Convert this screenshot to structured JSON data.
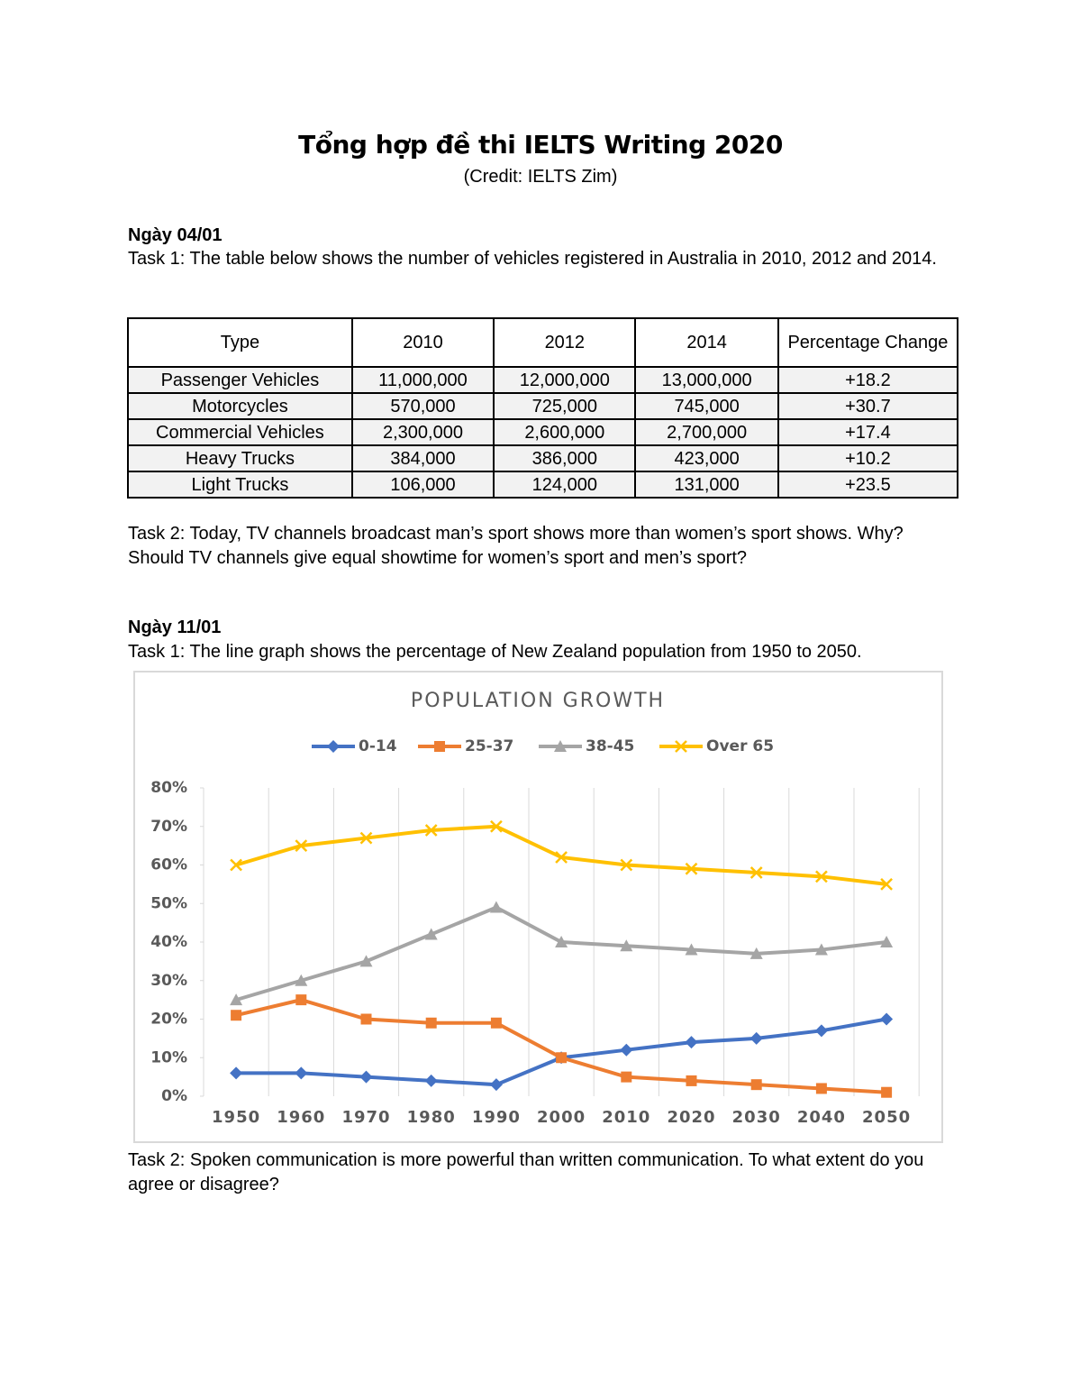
{
  "header": {
    "title": "Tổng hợp đề thi IELTS Writing 2020",
    "credit": "(Credit: IELTS Zim)"
  },
  "sections": [
    {
      "date": "Ngày 04/01",
      "task1": "Task 1: The table below shows the number of vehicles registered in Australia in 2010, 2012 and 2014.",
      "table": {
        "columns": [
          "Type",
          "2010",
          "2012",
          "2014",
          "Percentage Change"
        ],
        "rows": [
          [
            "Passenger Vehicles",
            "11,000,000",
            "12,000,000",
            "13,000,000",
            "+18.2"
          ],
          [
            "Motorcycles",
            "570,000",
            "725,000",
            "745,000",
            "+30.7"
          ],
          [
            "Commercial Vehicles",
            "2,300,000",
            "2,600,000",
            "2,700,000",
            "+17.4"
          ],
          [
            "Heavy Trucks",
            "384,000",
            "386,000",
            "423,000",
            "+10.2"
          ],
          [
            "Light Trucks",
            "106,000",
            "124,000",
            "131,000",
            "+23.5"
          ]
        ]
      },
      "task2": "Task 2: Today, TV channels broadcast man’s sport shows more than women’s sport shows. Why? Should TV channels give equal showtime for women’s sport and men’s sport?"
    },
    {
      "date": "Ngày 11/01",
      "task1": "Task 1: The line graph shows the percentage of New Zealand population from 1950 to 2050.",
      "task2": "Task 2: Spoken communication is more powerful than written communication. To what extent do you agree or disagree?"
    }
  ],
  "chart_data": {
    "type": "line",
    "title": "POPULATION GROWTH",
    "categories": [
      "1950",
      "1960",
      "1970",
      "1980",
      "1990",
      "2000",
      "2010",
      "2020",
      "2030",
      "2040",
      "2050"
    ],
    "series": [
      {
        "name": "0-14",
        "color": "#4472c4",
        "marker": "diamond",
        "values": [
          6,
          6,
          5,
          4,
          3,
          10,
          12,
          14,
          15,
          17,
          20
        ]
      },
      {
        "name": "25-37",
        "color": "#ed7d31",
        "marker": "square",
        "values": [
          21,
          25,
          20,
          19,
          19,
          10,
          5,
          4,
          3,
          2,
          1
        ]
      },
      {
        "name": "38-45",
        "color": "#a5a5a5",
        "marker": "triangle",
        "values": [
          25,
          30,
          35,
          42,
          49,
          40,
          39,
          38,
          37,
          38,
          40
        ]
      },
      {
        "name": "Over 65",
        "color": "#ffc000",
        "marker": "x",
        "values": [
          60,
          65,
          67,
          69,
          70,
          62,
          60,
          59,
          58,
          57,
          55
        ]
      }
    ],
    "ylim": [
      0,
      80
    ],
    "yticks": [
      {
        "value": 0,
        "label": "0%"
      },
      {
        "value": 10,
        "label": "10%"
      },
      {
        "value": 20,
        "label": "20%"
      },
      {
        "value": 30,
        "label": "30%"
      },
      {
        "value": 40,
        "label": "40%"
      },
      {
        "value": 50,
        "label": "50%"
      },
      {
        "value": 60,
        "label": "60%"
      },
      {
        "value": 70,
        "label": "70%"
      },
      {
        "value": 80,
        "label": "80%"
      }
    ],
    "grid": true,
    "legend": "top"
  }
}
